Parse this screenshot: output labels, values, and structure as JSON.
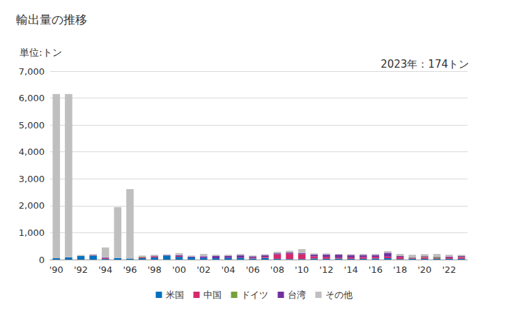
{
  "chart_data": {
    "type": "bar",
    "title": "輸出量の推移",
    "ylabel": "単位:トン",
    "annotation": "2023年：174トン",
    "stacked": true,
    "grid": true,
    "legend": "bottom",
    "categories": [
      "'90",
      null,
      "'92",
      null,
      "'94",
      null,
      "'96",
      null,
      "'98",
      null,
      "'00",
      null,
      "'02",
      null,
      "'04",
      null,
      "'06",
      null,
      "'08",
      null,
      "'10",
      null,
      "'12",
      null,
      "'14",
      null,
      "'16",
      null,
      "'18",
      null,
      "'20",
      null,
      "'22",
      null
    ],
    "ylim": [
      0,
      7000
    ],
    "yticks": [
      0,
      {
        "value": 1000,
        "label": "1,000"
      },
      {
        "value": 2000,
        "label": "2,000"
      },
      {
        "value": 3000,
        "label": "3,000"
      },
      {
        "value": 4000,
        "label": "4,000"
      },
      {
        "value": 5000,
        "label": "5,000"
      },
      {
        "value": 6000,
        "label": "6,000"
      },
      {
        "value": 7000,
        "label": "7,000"
      }
    ],
    "series": [
      {
        "name": "米国",
        "color": "#0070c0",
        "values": [
          50,
          80,
          130,
          150,
          30,
          60,
          40,
          50,
          80,
          150,
          100,
          80,
          60,
          50,
          60,
          60,
          40,
          60,
          30,
          20,
          20,
          40,
          30,
          40,
          30,
          30,
          40,
          50,
          20,
          30,
          30,
          30,
          30,
          30
        ]
      },
      {
        "name": "中国",
        "color": "#d6286a",
        "values": [
          0,
          0,
          0,
          20,
          30,
          0,
          0,
          30,
          40,
          0,
          30,
          0,
          0,
          0,
          0,
          0,
          30,
          40,
          160,
          200,
          180,
          80,
          70,
          40,
          50,
          60,
          60,
          60,
          80,
          20,
          60,
          20,
          50,
          60
        ]
      },
      {
        "name": "ドイツ",
        "color": "#77a13a",
        "values": [
          0,
          0,
          0,
          0,
          0,
          0,
          0,
          20,
          0,
          0,
          0,
          0,
          0,
          0,
          0,
          0,
          0,
          0,
          0,
          0,
          0,
          0,
          0,
          0,
          0,
          0,
          0,
          0,
          0,
          20,
          20,
          40,
          0,
          10
        ]
      },
      {
        "name": "台湾",
        "color": "#7030a0",
        "values": [
          0,
          0,
          0,
          0,
          20,
          0,
          0,
          0,
          20,
          20,
          30,
          30,
          60,
          80,
          80,
          100,
          50,
          60,
          40,
          40,
          40,
          60,
          80,
          100,
          90,
          80,
          70,
          140,
          30,
          20,
          20,
          20,
          30,
          30
        ]
      },
      {
        "name": "その他",
        "color": "#bfbfbf",
        "values": [
          6100,
          6070,
          40,
          30,
          370,
          1890,
          2580,
          50,
          40,
          20,
          80,
          40,
          90,
          50,
          40,
          50,
          30,
          40,
          60,
          70,
          150,
          50,
          50,
          30,
          30,
          40,
          40,
          60,
          80,
          90,
          70,
          100,
          70,
          44
        ]
      }
    ]
  }
}
